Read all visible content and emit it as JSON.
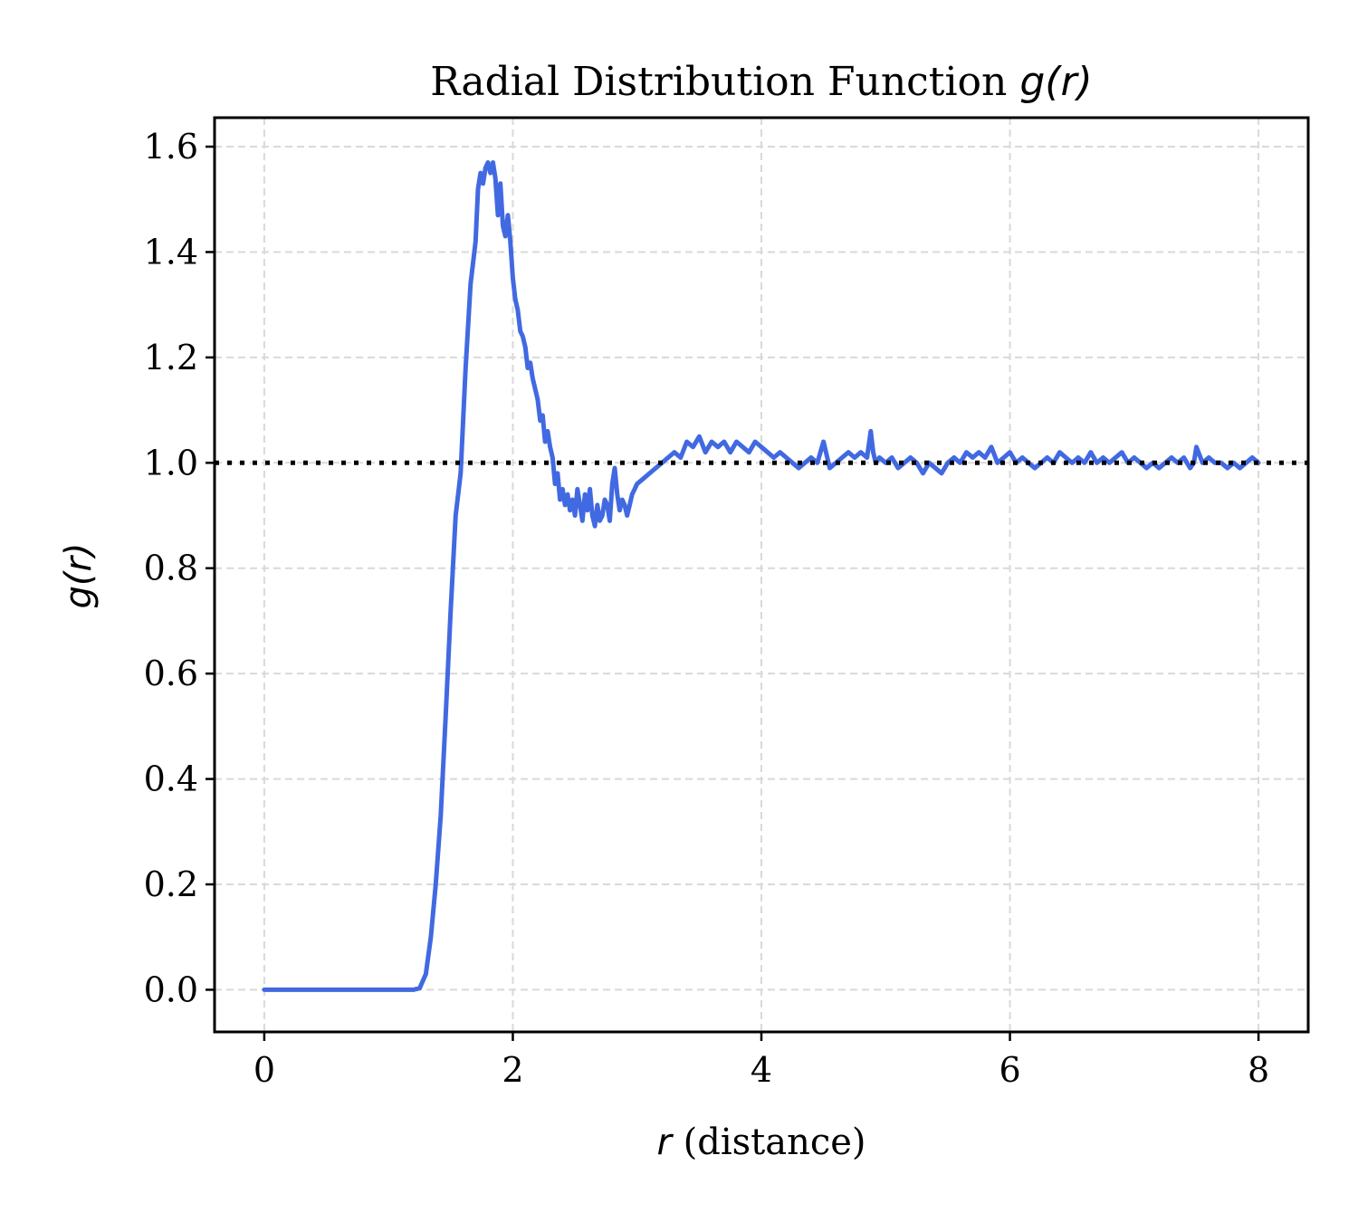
{
  "chart_data": {
    "type": "line",
    "title": {
      "text": "Radial Distribution Function ",
      "math": "g(r)"
    },
    "xlabel": {
      "math": "r",
      "text": " (distance)"
    },
    "ylabel": {
      "math": "g(r)"
    },
    "xlim": [
      -0.4,
      8.4
    ],
    "ylim": [
      -0.08,
      1.655
    ],
    "xticks": [
      0,
      2,
      4,
      6,
      8
    ],
    "xtick_labels": [
      "0",
      "2",
      "4",
      "6",
      "8"
    ],
    "yticks": [
      0.0,
      0.2,
      0.4,
      0.6,
      0.8,
      1.0,
      1.2,
      1.4,
      1.6
    ],
    "ytick_labels": [
      "0.0",
      "0.2",
      "0.4",
      "0.6",
      "0.8",
      "1.0",
      "1.2",
      "1.4",
      "1.6"
    ],
    "grid": true,
    "reference_line": {
      "y": 1.0,
      "style": "dotted",
      "color": "#000000"
    },
    "series": [
      {
        "color": "#4169e1",
        "x": [
          0.0,
          0.5,
          1.0,
          1.2,
          1.25,
          1.3,
          1.34,
          1.38,
          1.42,
          1.46,
          1.5,
          1.54,
          1.58,
          1.62,
          1.66,
          1.7,
          1.72,
          1.74,
          1.76,
          1.78,
          1.8,
          1.82,
          1.84,
          1.86,
          1.88,
          1.9,
          1.92,
          1.94,
          1.96,
          1.98,
          2.0,
          2.02,
          2.04,
          2.06,
          2.08,
          2.1,
          2.12,
          2.14,
          2.16,
          2.18,
          2.2,
          2.22,
          2.24,
          2.26,
          2.28,
          2.3,
          2.32,
          2.34,
          2.36,
          2.38,
          2.4,
          2.42,
          2.44,
          2.46,
          2.48,
          2.5,
          2.52,
          2.54,
          2.56,
          2.58,
          2.6,
          2.62,
          2.64,
          2.66,
          2.68,
          2.7,
          2.72,
          2.74,
          2.76,
          2.78,
          2.8,
          2.82,
          2.84,
          2.86,
          2.88,
          2.9,
          2.92,
          2.94,
          2.96,
          2.98,
          3.0,
          3.05,
          3.1,
          3.15,
          3.2,
          3.25,
          3.3,
          3.35,
          3.4,
          3.45,
          3.5,
          3.55,
          3.6,
          3.65,
          3.7,
          3.75,
          3.8,
          3.85,
          3.9,
          3.95,
          4.0,
          4.05,
          4.1,
          4.15,
          4.2,
          4.25,
          4.3,
          4.35,
          4.4,
          4.45,
          4.5,
          4.55,
          4.6,
          4.65,
          4.7,
          4.75,
          4.8,
          4.85,
          4.88,
          4.9,
          4.92,
          4.95,
          5.0,
          5.05,
          5.1,
          5.15,
          5.2,
          5.25,
          5.3,
          5.35,
          5.4,
          5.45,
          5.5,
          5.55,
          5.6,
          5.65,
          5.7,
          5.75,
          5.8,
          5.85,
          5.9,
          5.95,
          6.0,
          6.05,
          6.1,
          6.15,
          6.2,
          6.25,
          6.3,
          6.35,
          6.4,
          6.45,
          6.5,
          6.55,
          6.6,
          6.65,
          6.7,
          6.75,
          6.8,
          6.85,
          6.9,
          6.95,
          7.0,
          7.05,
          7.1,
          7.15,
          7.2,
          7.25,
          7.3,
          7.35,
          7.4,
          7.45,
          7.48,
          7.5,
          7.55,
          7.6,
          7.65,
          7.7,
          7.75,
          7.8,
          7.85,
          7.9,
          7.95,
          8.0
        ],
        "y": [
          0.0,
          0.0,
          0.0,
          0.0,
          0.003,
          0.03,
          0.1,
          0.2,
          0.33,
          0.52,
          0.72,
          0.9,
          0.98,
          1.18,
          1.34,
          1.42,
          1.52,
          1.55,
          1.53,
          1.56,
          1.57,
          1.55,
          1.57,
          1.54,
          1.47,
          1.53,
          1.45,
          1.43,
          1.47,
          1.42,
          1.35,
          1.31,
          1.29,
          1.25,
          1.24,
          1.22,
          1.18,
          1.19,
          1.16,
          1.14,
          1.12,
          1.08,
          1.09,
          1.04,
          1.06,
          1.03,
          1.01,
          0.96,
          0.98,
          0.93,
          0.95,
          0.92,
          0.94,
          0.91,
          0.93,
          0.9,
          0.95,
          0.92,
          0.89,
          0.94,
          0.91,
          0.95,
          0.9,
          0.88,
          0.92,
          0.89,
          0.9,
          0.93,
          0.92,
          0.89,
          0.96,
          0.99,
          0.94,
          0.91,
          0.93,
          0.92,
          0.9,
          0.92,
          0.94,
          0.95,
          0.96,
          0.97,
          0.98,
          0.99,
          1.0,
          1.01,
          1.02,
          1.01,
          1.04,
          1.03,
          1.05,
          1.02,
          1.04,
          1.03,
          1.04,
          1.02,
          1.04,
          1.03,
          1.02,
          1.04,
          1.03,
          1.02,
          1.01,
          1.02,
          1.01,
          1.0,
          0.99,
          1.0,
          1.01,
          1.0,
          1.04,
          0.99,
          1.0,
          1.01,
          1.02,
          1.01,
          1.02,
          1.01,
          1.06,
          1.02,
          1.0,
          1.01,
          1.0,
          1.01,
          0.99,
          1.0,
          1.01,
          1.0,
          0.98,
          1.0,
          0.99,
          0.98,
          1.0,
          1.01,
          1.0,
          1.02,
          1.01,
          1.02,
          1.01,
          1.03,
          1.0,
          1.01,
          1.02,
          1.0,
          1.01,
          1.0,
          0.99,
          1.0,
          1.01,
          1.0,
          1.02,
          1.01,
          1.0,
          1.01,
          1.0,
          1.02,
          1.0,
          1.01,
          1.0,
          1.01,
          1.02,
          1.0,
          1.01,
          1.0,
          0.99,
          1.0,
          0.99,
          1.0,
          1.01,
          1.0,
          1.01,
          0.99,
          1.0,
          1.03,
          1.0,
          1.01,
          1.0,
          1.0,
          0.99,
          1.0,
          0.99,
          1.0,
          1.01,
          1.0
        ]
      }
    ]
  }
}
